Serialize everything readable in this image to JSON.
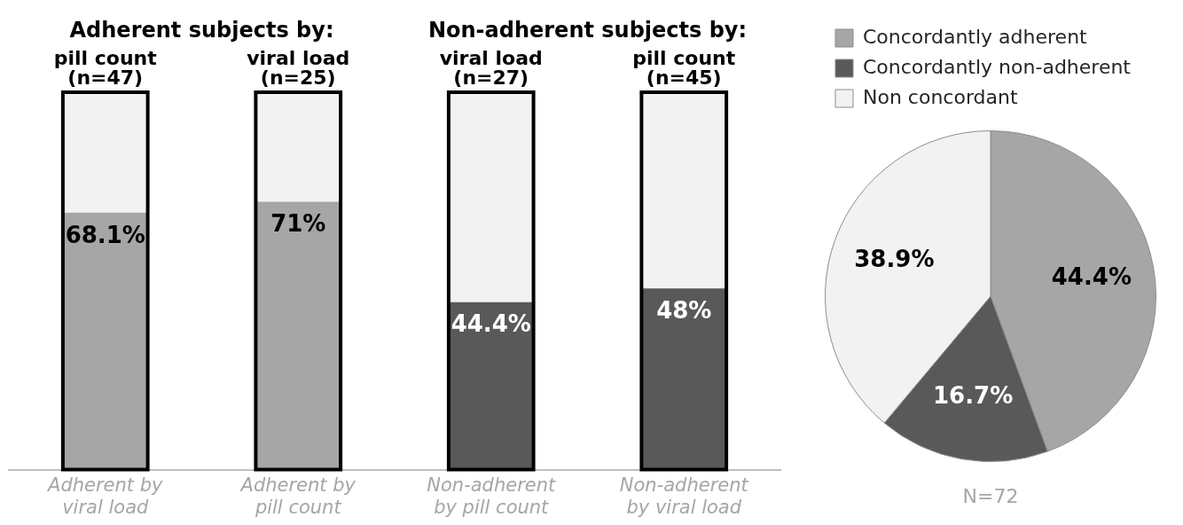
{
  "chart_data": [
    {
      "type": "bar",
      "stacked": true,
      "categories": [
        "Adherent by viral load",
        "Adherent by pill count",
        "Non-adherent by pill count",
        "Non-adherent by viral load"
      ],
      "ylim": [
        0,
        100
      ],
      "tick_labels": "x",
      "grid": false,
      "legend": false,
      "series": [
        {
          "colors": [
            "#a6a6a6",
            "#a6a6a6",
            "#595959",
            "#595959"
          ],
          "values": [
            68.1,
            71,
            44.4,
            48
          ],
          "value_labels": [
            "68.1%",
            "71%",
            "44.4%",
            "48%"
          ]
        },
        {
          "color": "#f2f2f2",
          "values": [
            31.9,
            29,
            55.6,
            52
          ]
        }
      ],
      "annotations": [
        "Adherent subjects by:",
        "Non-adherent subjects by:",
        {
          "text": "pill count (n=47)",
          "x": "Adherent by viral load",
          "y": 100
        },
        {
          "text": "viral load (n=25)",
          "x": "Adherent by pill count",
          "y": 100
        },
        {
          "text": "viral load (n=27)",
          "x": "Non-adherent by pill count",
          "y": 100
        },
        {
          "text": "pill count (n=45)",
          "x": "Non-adherent by viral load",
          "y": 100
        }
      ]
    },
    {
      "type": "pie",
      "categories": [
        "Concordantly adherent",
        "Concordantly non-adherent",
        "Non concordant"
      ],
      "values": [
        44.4,
        16.7,
        38.9
      ],
      "colors": [
        "#a6a6a6",
        "#595959",
        "#f2f2f2"
      ],
      "value_labels": [
        "44.4%",
        "16.7%",
        "38.9%"
      ],
      "legend": "top",
      "annotations": [
        "N=72"
      ]
    }
  ]
}
